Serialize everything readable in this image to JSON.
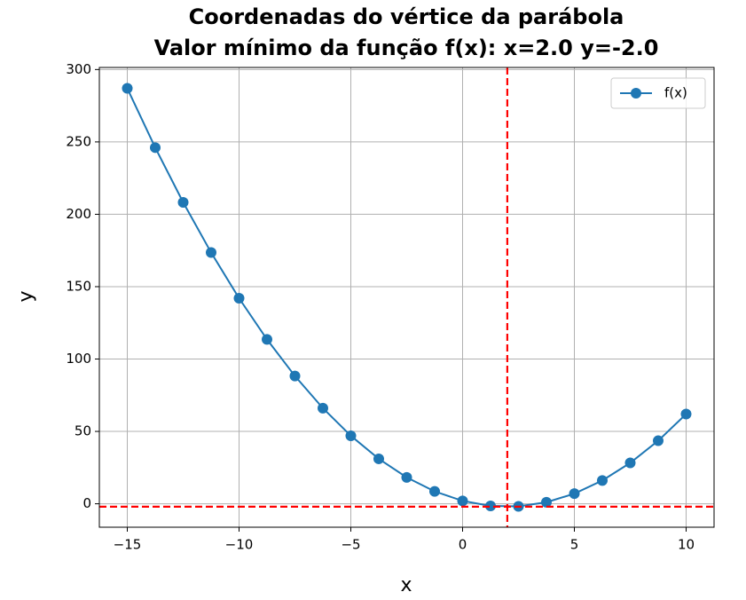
{
  "chart_data": {
    "type": "line",
    "title": "Coordenadas do vértice da parábola",
    "subtitle": "Valor mínimo da função f(x): x=2.0 y=-2.0",
    "x_label": "x",
    "y_label": "y",
    "x": [
      -15,
      -13.75,
      -12.5,
      -11.25,
      -10,
      -8.75,
      -7.5,
      -6.25,
      -5,
      -3.75,
      -2.5,
      -1.25,
      0,
      1.25,
      2.5,
      3.75,
      5,
      6.25,
      7.5,
      8.75,
      10
    ],
    "series": [
      {
        "name": "f(x)",
        "color": "#1f77b4",
        "values": [
          287,
          246.06,
          208.25,
          173.56,
          142,
          113.56,
          88.25,
          66.06,
          47,
          31.06,
          18.25,
          8.56,
          2,
          -1.44,
          -1.75,
          1.06,
          7,
          16.06,
          28.25,
          43.56,
          62
        ]
      }
    ],
    "vline": 2,
    "hline": -2,
    "ref_color": "#ff0000",
    "xlim": [
      -16.25,
      11.25
    ],
    "ylim": [
      -16.19,
      301.44
    ],
    "xticks": [
      {
        "value": -15,
        "label": "−15"
      },
      {
        "value": -10,
        "label": "−10"
      },
      {
        "value": -5,
        "label": "−5"
      },
      0,
      5,
      10
    ],
    "yticks": [
      0,
      50,
      100,
      150,
      200,
      250,
      300
    ],
    "grid": true,
    "legend": "upper right"
  }
}
